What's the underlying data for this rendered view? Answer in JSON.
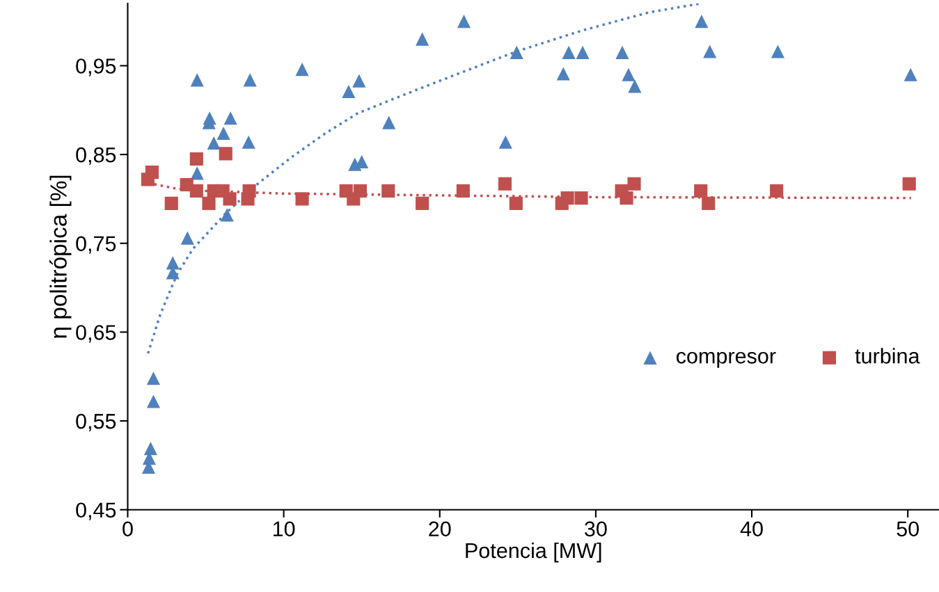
{
  "chart_data": {
    "type": "scatter",
    "xlabel": "Potencia [MW]",
    "ylabel": "η politrópica [%]",
    "xlim": [
      0,
      52
    ],
    "xticks": [
      0,
      10,
      20,
      30,
      40,
      50
    ],
    "ylim": [
      0.45,
      1.02
    ],
    "yticks": [
      {
        "value": 0.45,
        "label": "0,45"
      },
      {
        "value": 0.55,
        "label": "0,55"
      },
      {
        "value": 0.65,
        "label": "0,65"
      },
      {
        "value": 0.75,
        "label": "0,75"
      },
      {
        "value": 0.85,
        "label": "0,85"
      },
      {
        "value": 0.95,
        "label": "0,95"
      }
    ],
    "grid": false,
    "legend": "right",
    "series": [
      {
        "name": "compresor",
        "color": "#4f81bd",
        "marker": "triangle",
        "x": [
          1.34,
          1.38,
          1.47,
          1.65,
          1.65,
          2.89,
          2.89,
          3.83,
          4.45,
          4.45,
          5.21,
          5.25,
          5.52,
          6.14,
          6.37,
          6.59,
          7.75,
          7.84,
          11.18,
          14.16,
          14.56,
          15.0,
          14.83,
          16.74,
          18.88,
          21.55,
          24.22,
          24.93,
          27.92,
          28.27,
          29.16,
          31.7,
          32.1,
          32.5,
          36.78,
          37.31,
          41.67,
          50.18
        ],
        "values": [
          0.498,
          0.508,
          0.519,
          0.572,
          0.598,
          0.717,
          0.728,
          0.756,
          0.934,
          0.829,
          0.886,
          0.891,
          0.863,
          0.874,
          0.782,
          0.891,
          0.864,
          0.934,
          0.946,
          0.921,
          0.839,
          0.842,
          0.933,
          0.886,
          0.98,
          1.0,
          0.864,
          0.965,
          0.941,
          0.965,
          0.965,
          0.965,
          0.94,
          0.927,
          1.0,
          0.966,
          0.966,
          0.94
        ]
      },
      {
        "name": "turbina",
        "color": "#c0504d",
        "marker": "square",
        "x": [
          1.29,
          1.56,
          2.8,
          3.78,
          4.41,
          4.41,
          5.03,
          5.2,
          5.52,
          6.1,
          6.28,
          6.54,
          7.7,
          7.79,
          11.18,
          14.0,
          14.47,
          14.5,
          14.9,
          16.7,
          18.88,
          21.5,
          24.18,
          24.89,
          27.83,
          28.18,
          29.07,
          31.66,
          31.97,
          32.46,
          36.73,
          37.22,
          41.59,
          50.09
        ],
        "values": [
          0.822,
          0.83,
          0.795,
          0.816,
          0.845,
          0.809,
          null,
          0.795,
          0.809,
          0.809,
          0.851,
          0.8,
          0.8,
          0.809,
          0.8,
          0.809,
          0.8,
          null,
          0.809,
          0.809,
          0.795,
          0.809,
          0.817,
          0.795,
          0.795,
          0.801,
          0.801,
          0.809,
          0.801,
          0.817,
          0.809,
          0.795,
          0.809,
          0.817
        ]
      },
      {
        "type": "line",
        "color": "#4f81bd",
        "line_style": "dotted",
        "marker": "none",
        "x": [
          1.3,
          2.09,
          3.16,
          4.19,
          6.3,
          8.4,
          10.5,
          12.6,
          14.7,
          16.8,
          20.0,
          24.9,
          29.2,
          33.4,
          36.7
        ],
        "values": [
          0.626,
          0.67,
          0.715,
          0.744,
          0.784,
          0.818,
          0.847,
          0.873,
          0.896,
          0.911,
          0.933,
          0.966,
          0.99,
          1.01,
          1.02
        ]
      },
      {
        "type": "line",
        "color": "#c0504d",
        "line_style": "dotted",
        "marker": "none",
        "x": [
          1.3,
          3,
          5,
          10,
          20,
          30,
          50.2
        ],
        "values": [
          0.818,
          0.812,
          0.809,
          0.806,
          0.804,
          0.802,
          0.801
        ]
      }
    ]
  }
}
